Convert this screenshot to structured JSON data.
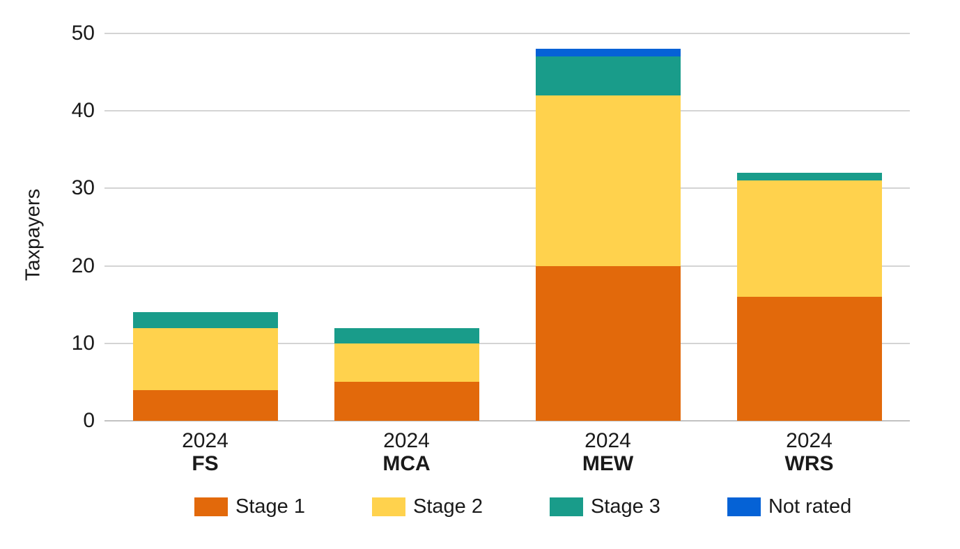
{
  "chart_data": {
    "type": "bar",
    "stacked": true,
    "ylabel": "Taxpayers",
    "xlabel": "",
    "ylim": [
      0,
      50
    ],
    "yticks": [
      0,
      10,
      20,
      30,
      40,
      50
    ],
    "grid": true,
    "legend_position": "bottom",
    "categories": [
      "FS",
      "MCA",
      "MEW",
      "WRS"
    ],
    "category_years": [
      "2024",
      "2024",
      "2024",
      "2024"
    ],
    "series": [
      {
        "name": "Stage 1",
        "color": "#E2690B",
        "values": [
          4,
          5,
          20,
          16
        ]
      },
      {
        "name": "Stage 2",
        "color": "#FFD24D",
        "values": [
          8,
          5,
          22,
          15
        ]
      },
      {
        "name": "Stage 3",
        "color": "#199C8A",
        "values": [
          2,
          2,
          5,
          1
        ]
      },
      {
        "name": "Not rated",
        "color": "#0562D6",
        "values": [
          0,
          0,
          1,
          0
        ]
      }
    ],
    "stack_totals": [
      14,
      12,
      48,
      32
    ]
  },
  "colors": {
    "gridline": "#D4D4D4",
    "axis_line": "#C2C2C2",
    "text": "#1A1A1A",
    "background": "#FFFFFF"
  }
}
